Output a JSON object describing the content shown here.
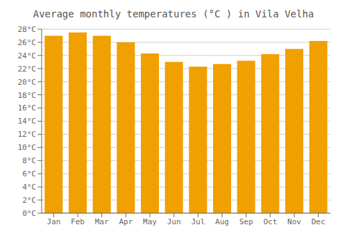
{
  "chart_data": {
    "type": "bar",
    "title": "Average monthly temperatures (°C ) in Vila Velha",
    "categories": [
      "Jan",
      "Feb",
      "Mar",
      "Apr",
      "May",
      "Jun",
      "Jul",
      "Aug",
      "Sep",
      "Oct",
      "Nov",
      "Dec"
    ],
    "values": [
      27.0,
      27.5,
      27.0,
      26.0,
      24.3,
      23.0,
      22.3,
      22.7,
      23.2,
      24.2,
      25.0,
      26.2
    ],
    "color": "#F0A000",
    "ylim": [
      0,
      28
    ],
    "yticks": [
      {
        "value": 0,
        "label": "0°C"
      },
      {
        "value": 2,
        "label": "2°C"
      },
      {
        "value": 4,
        "label": "4°C"
      },
      {
        "value": 6,
        "label": "6°C"
      },
      {
        "value": 8,
        "label": "8°C"
      },
      {
        "value": 10,
        "label": "10°C"
      },
      {
        "value": 12,
        "label": "12°C"
      },
      {
        "value": 14,
        "label": "14°C"
      },
      {
        "value": 16,
        "label": "16°C"
      },
      {
        "value": 18,
        "label": "18°C"
      },
      {
        "value": 20,
        "label": "20°C"
      },
      {
        "value": 22,
        "label": "22°C"
      },
      {
        "value": 24,
        "label": "24°C"
      },
      {
        "value": 26,
        "label": "26°C"
      },
      {
        "value": 28,
        "label": "28°C"
      }
    ],
    "grid": true
  }
}
